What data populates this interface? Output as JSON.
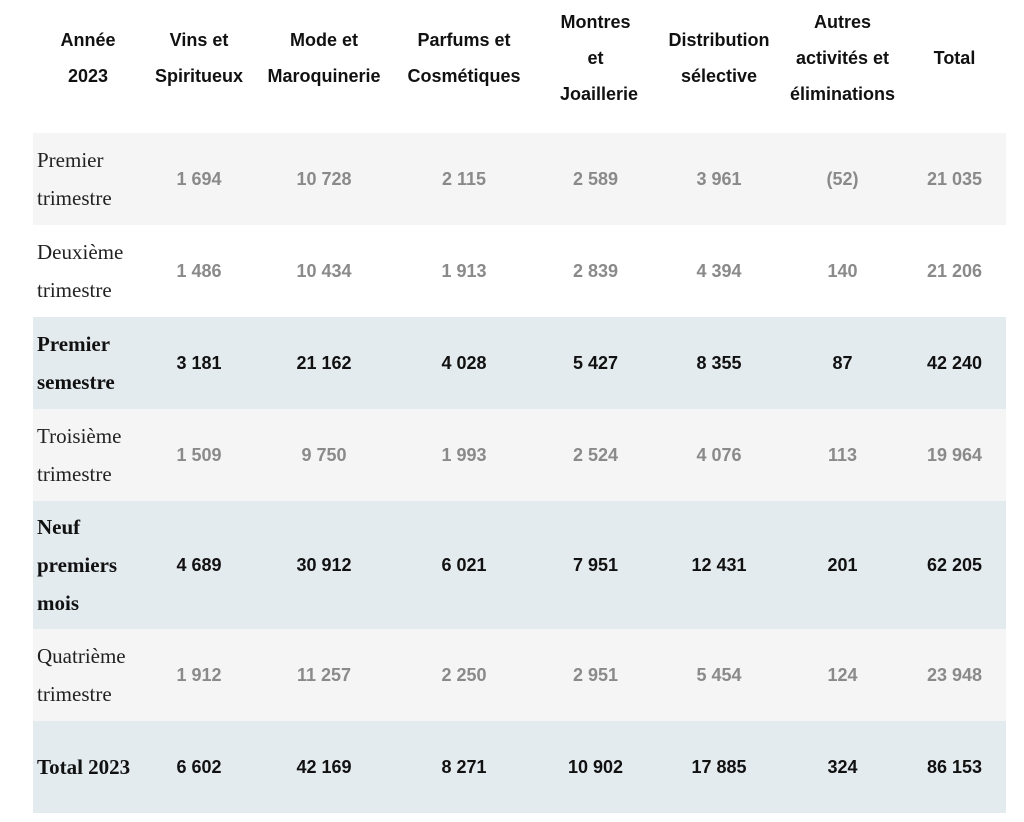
{
  "table": {
    "header": [
      "Année 2023",
      "Vins et Spiritueux",
      "Mode et Maroquinerie",
      "Parfums et Cosmétiques",
      "Montres et Joaillerie",
      "Distribution sélective",
      "Autres activités et éliminations",
      "Total"
    ],
    "rows": [
      [
        "Premier trimestre",
        "1 694",
        "10 728",
        "2 115",
        "2 589",
        "3 961",
        "(52)",
        "21 035"
      ],
      [
        "Deuxième trimestre",
        "1 486",
        "10 434",
        "1 913",
        "2 839",
        "4 394",
        "140",
        "21 206"
      ],
      [
        "Premier semestre",
        "3 181",
        "21 162",
        "4 028",
        "5 427",
        "8 355",
        "87",
        "42 240"
      ],
      [
        "Troisième trimestre",
        "1 509",
        "9 750",
        "1 993",
        "2 524",
        "4 076",
        "113",
        "19 964"
      ],
      [
        "Neuf premiers mois",
        "4 689",
        "30 912",
        "6 021",
        "7 951",
        "12 431",
        "201",
        "62 205"
      ],
      [
        "Quatrième trimestre",
        "1 912",
        "11 257",
        "2 250",
        "2 951",
        "5 454",
        "124",
        "23 948"
      ],
      [
        "Total 2023",
        "6 602",
        "42 169",
        "8 271",
        "10 902",
        "17 885",
        "324",
        "86 153"
      ]
    ]
  }
}
